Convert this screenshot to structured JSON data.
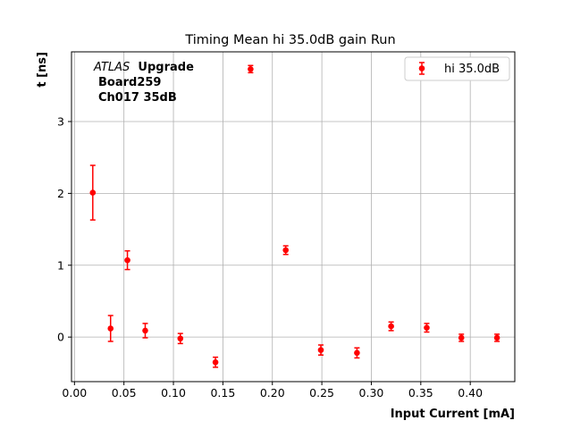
{
  "chart_data": {
    "type": "scatter",
    "title": "Timing Mean hi 35.0dB gain Run",
    "xlabel": "Input Current [mA]",
    "ylabel": "t [ns]",
    "xlim": [
      -0.003,
      0.445
    ],
    "ylim": [
      -0.62,
      3.97
    ],
    "xticks": [
      "0.00",
      "0.05",
      "0.10",
      "0.15",
      "0.20",
      "0.25",
      "0.30",
      "0.35",
      "0.40"
    ],
    "xtick_values": [
      0.0,
      0.05,
      0.1,
      0.15,
      0.2,
      0.25,
      0.3,
      0.35,
      0.4
    ],
    "yticks": [
      "0",
      "1",
      "2",
      "3"
    ],
    "ytick_values": [
      0,
      1,
      2,
      3
    ],
    "grid": true,
    "legend_position": "top-right",
    "annotation": {
      "atlas": "ATLAS",
      "upgrade": "Upgrade",
      "board": "Board259",
      "channel": "Ch017 35dB"
    },
    "series": [
      {
        "name": "hi 35.0dB",
        "color": "#ff0000",
        "x": [
          0.0185,
          0.0365,
          0.0535,
          0.0715,
          0.107,
          0.1425,
          0.178,
          0.2135,
          0.249,
          0.2855,
          0.32,
          0.356,
          0.391,
          0.427
        ],
        "y": [
          2.01,
          0.12,
          1.07,
          0.09,
          -0.02,
          -0.35,
          3.73,
          1.21,
          -0.18,
          -0.22,
          0.15,
          0.13,
          -0.01,
          -0.01
        ],
        "err": [
          0.38,
          0.18,
          0.13,
          0.1,
          0.07,
          0.07,
          0.05,
          0.06,
          0.07,
          0.07,
          0.06,
          0.06,
          0.05,
          0.05
        ]
      }
    ]
  }
}
